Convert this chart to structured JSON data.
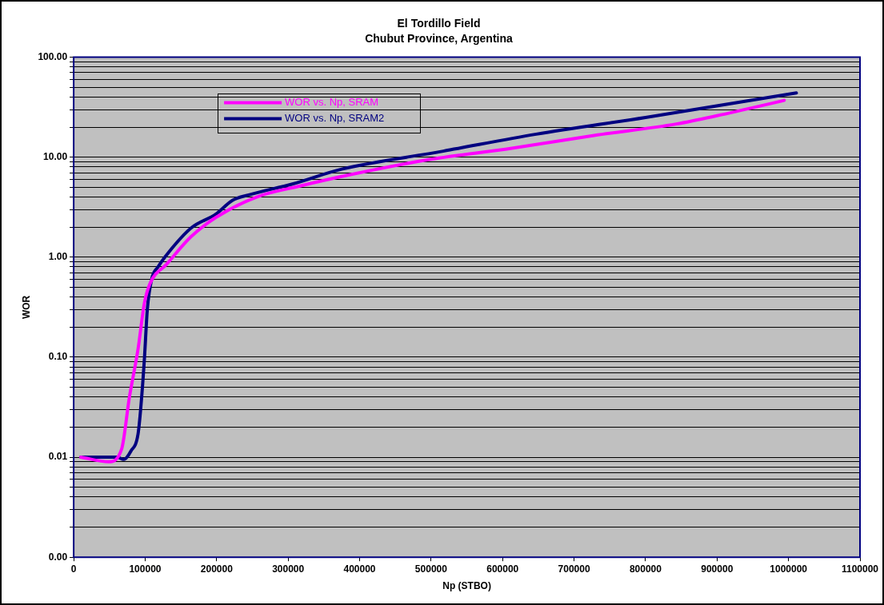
{
  "chart_data": {
    "type": "line",
    "title": "El Tordillo Field",
    "subtitle": "Chubut Province, Argentina",
    "xlabel": "Np (STBO)",
    "ylabel": "WOR",
    "log": "y",
    "grid": "y",
    "legend": "top left",
    "marker": "none",
    "line_style": "solid",
    "xlim": [
      0,
      1100000
    ],
    "xticks": [
      0,
      100000,
      200000,
      300000,
      400000,
      500000,
      600000,
      700000,
      800000,
      900000,
      1000000,
      1100000
    ],
    "ylim": [
      0.001,
      100
    ],
    "yticks": [
      {
        "value": 0.001,
        "label": "0.00"
      },
      {
        "value": 0.002,
        "label": null
      },
      {
        "value": 0.003,
        "label": null
      },
      {
        "value": 0.004,
        "label": null
      },
      {
        "value": 0.005,
        "label": null
      },
      {
        "value": 0.006,
        "label": null
      },
      {
        "value": 0.007,
        "label": null
      },
      {
        "value": 0.008,
        "label": null
      },
      {
        "value": 0.009,
        "label": null
      },
      {
        "value": 0.01,
        "label": "0.01"
      },
      {
        "value": 0.02,
        "label": null
      },
      {
        "value": 0.03,
        "label": null
      },
      {
        "value": 0.04,
        "label": null
      },
      {
        "value": 0.05,
        "label": null
      },
      {
        "value": 0.06,
        "label": null
      },
      {
        "value": 0.07,
        "label": null
      },
      {
        "value": 0.08,
        "label": null
      },
      {
        "value": 0.09,
        "label": null
      },
      {
        "value": 0.1,
        "label": "0.10"
      },
      {
        "value": 0.2,
        "label": null
      },
      {
        "value": 0.3,
        "label": null
      },
      {
        "value": 0.4,
        "label": null
      },
      {
        "value": 0.5,
        "label": null
      },
      {
        "value": 0.6,
        "label": null
      },
      {
        "value": 0.7,
        "label": null
      },
      {
        "value": 0.8,
        "label": null
      },
      {
        "value": 0.9,
        "label": null
      },
      {
        "value": 1,
        "label": "1.00"
      },
      {
        "value": 2,
        "label": null
      },
      {
        "value": 3,
        "label": null
      },
      {
        "value": 4,
        "label": null
      },
      {
        "value": 5,
        "label": null
      },
      {
        "value": 6,
        "label": null
      },
      {
        "value": 7,
        "label": null
      },
      {
        "value": 8,
        "label": null
      },
      {
        "value": 9,
        "label": null
      },
      {
        "value": 10,
        "label": "10.00"
      },
      {
        "value": 20,
        "label": null
      },
      {
        "value": 30,
        "label": null
      },
      {
        "value": 40,
        "label": null
      },
      {
        "value": 50,
        "label": null
      },
      {
        "value": 60,
        "label": null
      },
      {
        "value": 70,
        "label": null
      },
      {
        "value": 80,
        "label": null
      },
      {
        "value": 90,
        "label": null
      },
      {
        "value": 100,
        "label": "100.00"
      }
    ],
    "series": [
      {
        "name": "WOR vs. Np, SRAM",
        "color": "#ff00ff",
        "x": [
          10000,
          49000,
          67000,
          78000,
          90000,
          99000,
          107000,
          130000,
          164000,
          199000,
          256000,
          314000,
          383000,
          498000,
          613000,
          728000,
          843000,
          900000,
          994000
        ],
        "values": [
          0.01,
          0.009,
          0.012,
          0.04,
          0.12,
          0.35,
          0.55,
          0.85,
          1.6,
          2.5,
          4.0,
          5.1,
          6.6,
          9.5,
          12.3,
          16.5,
          21.5,
          26,
          37
        ]
      },
      {
        "name": "WOR vs. Np, SRAM2",
        "color": "#000080",
        "x": [
          10000,
          61000,
          70000,
          80000,
          90000,
          94000,
          99000,
          103000,
          109000,
          118000,
          132000,
          164000,
          199000,
          222000,
          245000,
          306000,
          375000,
          517000,
          647000,
          800000,
          1011000
        ],
        "values": [
          0.01,
          0.01,
          0.0095,
          0.0115,
          0.017,
          0.032,
          0.098,
          0.3,
          0.6,
          0.8,
          1.1,
          1.95,
          2.7,
          3.7,
          4.2,
          5.4,
          7.6,
          11.5,
          17,
          25,
          44
        ]
      }
    ]
  }
}
